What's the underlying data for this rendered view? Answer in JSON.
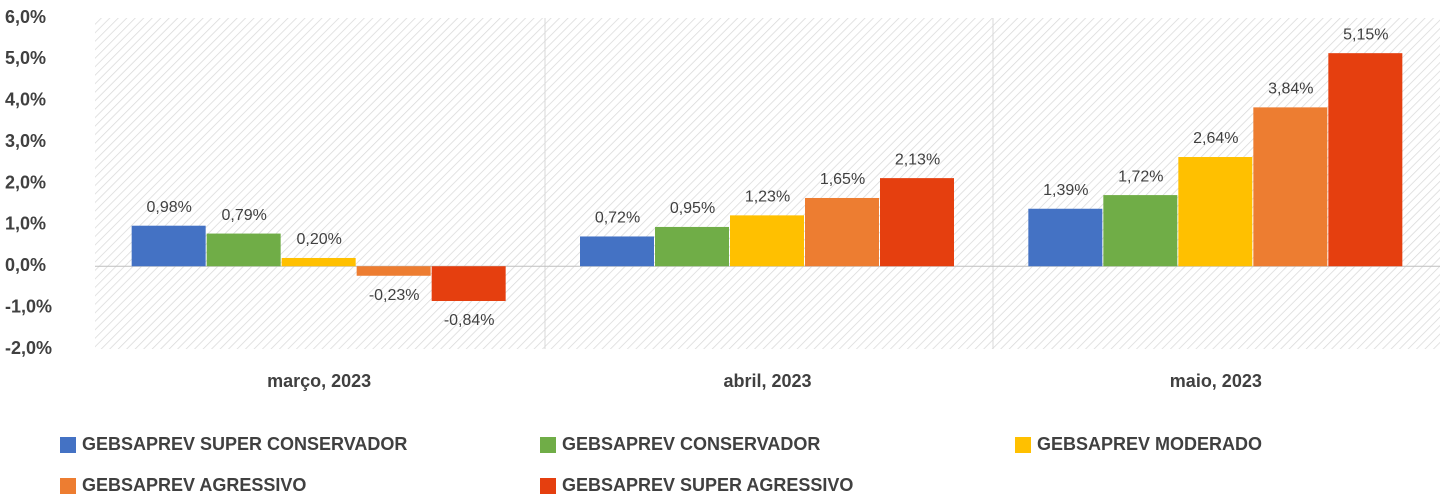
{
  "chart_data": {
    "type": "bar",
    "categories": [
      "março, 2023",
      "abril, 2023",
      "maio, 2023"
    ],
    "series": [
      {
        "name": "GEBSAPREV SUPER CONSERVADOR",
        "color": "#4472c4",
        "values": [
          0.98,
          0.72,
          1.39
        ],
        "value_labels": [
          "0,98%",
          "0,72%",
          "1,39%"
        ]
      },
      {
        "name": "GEBSAPREV CONSERVADOR",
        "color": "#70ad47",
        "values": [
          0.79,
          0.95,
          1.72
        ],
        "value_labels": [
          "0,79%",
          "0,95%",
          "1,72%"
        ]
      },
      {
        "name": "GEBSAPREV MODERADO",
        "color": "#ffc000",
        "values": [
          0.2,
          1.23,
          2.64
        ],
        "value_labels": [
          "0,20%",
          "1,23%",
          "2,64%"
        ]
      },
      {
        "name": "GEBSAPREV AGRESSIVO",
        "color": "#ed7d31",
        "values": [
          -0.23,
          1.65,
          3.84
        ],
        "value_labels": [
          "-0,23%",
          "1,65%",
          "3,84%"
        ]
      },
      {
        "name": "GEBSAPREV SUPER AGRESSIVO",
        "color": "#e53f0f",
        "values": [
          -0.84,
          2.13,
          5.15
        ],
        "value_labels": [
          "-0,84%",
          "2,13%",
          "5,15%"
        ]
      }
    ],
    "ylim": [
      -2,
      6
    ],
    "yticks": [
      {
        "value": 6,
        "label": "6,0%"
      },
      {
        "value": 5,
        "label": "5,0%"
      },
      {
        "value": 4,
        "label": "4,0%"
      },
      {
        "value": 3,
        "label": "3,0%"
      },
      {
        "value": 2,
        "label": "2,0%"
      },
      {
        "value": 1,
        "label": "1,0%"
      },
      {
        "value": 0,
        "label": "0,0%"
      },
      {
        "value": -1,
        "label": "-1,0%"
      },
      {
        "value": -2,
        "label": "-2,0%"
      }
    ],
    "grid": false,
    "legend": "bottom"
  }
}
